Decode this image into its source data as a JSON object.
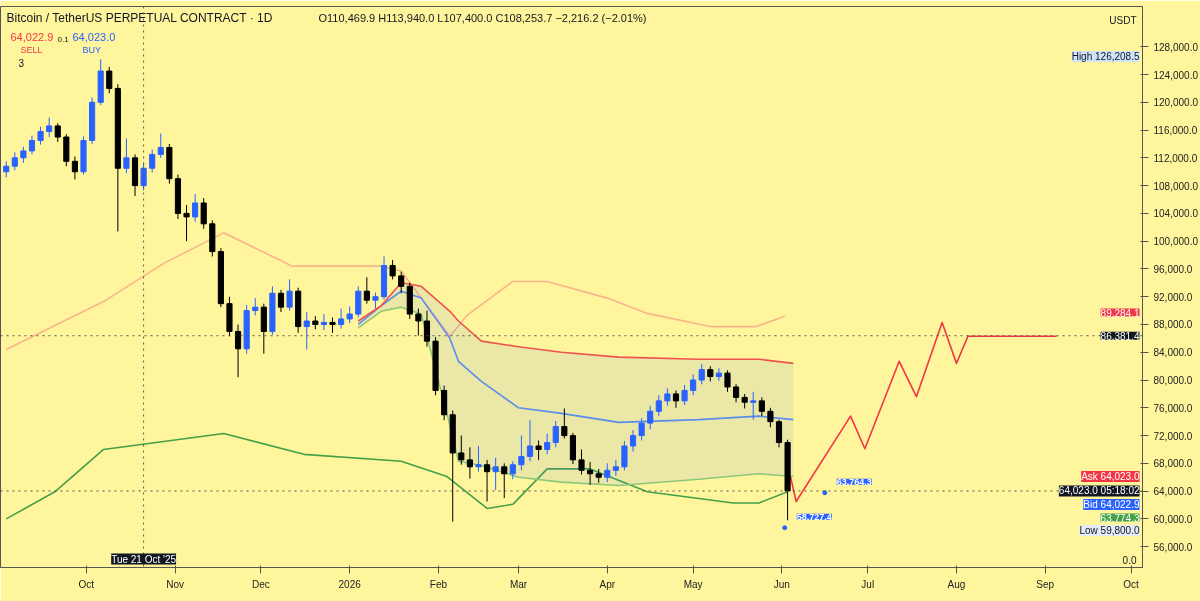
{
  "chart_data": {
    "type": "candlestick",
    "title": "Bitcoin / TetherUS PERPETUAL CONTRACT · 1D",
    "subtitle": "O110,469.9 H113,940.0 L107,400.0 C108,253.7 −2,216.2 (−2.01%)",
    "x": [
      "2025-09-03",
      "2025-09-06",
      "2025-09-09",
      "2025-09-12",
      "2025-09-15",
      "2025-09-18",
      "2025-09-21",
      "2025-09-24",
      "2025-09-27",
      "2025-09-30",
      "2025-10-03",
      "2025-10-06",
      "2025-10-09",
      "2025-10-12",
      "2025-10-15",
      "2025-10-18",
      "2025-10-21",
      "2025-10-24",
      "2025-10-27",
      "2025-10-30",
      "2025-11-02",
      "2025-11-05",
      "2025-11-08",
      "2025-11-11",
      "2025-11-14",
      "2025-11-17",
      "2025-11-20",
      "2025-11-23",
      "2025-11-26",
      "2025-11-29",
      "2025-12-02",
      "2025-12-05",
      "2025-12-08",
      "2025-12-11",
      "2025-12-14",
      "2025-12-17",
      "2025-12-20",
      "2025-12-23",
      "2025-12-26",
      "2025-12-29",
      "2026-01-01",
      "2026-01-04",
      "2026-01-07",
      "2026-01-10",
      "2026-01-13",
      "2026-01-16",
      "2026-01-19",
      "2026-01-22",
      "2026-01-25",
      "2026-01-28",
      "2026-01-31",
      "2026-02-03",
      "2026-02-06",
      "2026-02-09",
      "2026-02-12",
      "2026-02-15",
      "2026-02-18",
      "2026-02-21",
      "2026-02-24",
      "2026-02-27",
      "2026-03-02",
      "2026-03-05",
      "2026-03-08",
      "2026-03-11",
      "2026-03-14",
      "2026-03-17",
      "2026-03-20",
      "2026-03-23",
      "2026-03-26",
      "2026-03-29",
      "2026-04-01",
      "2026-04-04",
      "2026-04-07",
      "2026-04-10",
      "2026-04-13",
      "2026-04-16",
      "2026-04-19",
      "2026-04-22",
      "2026-04-25",
      "2026-04-28",
      "2026-05-01",
      "2026-05-04",
      "2026-05-07",
      "2026-05-10",
      "2026-05-13",
      "2026-05-16",
      "2026-05-19",
      "2026-05-22",
      "2026-05-25",
      "2026-05-28",
      "2026-05-31",
      "2026-06-03"
    ],
    "ohlc": [
      [
        110000,
        111500,
        109200,
        110800
      ],
      [
        110800,
        112800,
        110200,
        112000
      ],
      [
        112000,
        113600,
        111300,
        113000
      ],
      [
        113000,
        115200,
        112500,
        114500
      ],
      [
        114500,
        116500,
        113900,
        115800
      ],
      [
        115800,
        117800,
        115000,
        116600
      ],
      [
        116600,
        117000,
        114300,
        115000
      ],
      [
        115000,
        115400,
        110800,
        111500
      ],
      [
        111500,
        112200,
        108900,
        110000
      ],
      [
        110000,
        115100,
        109600,
        114500
      ],
      [
        114500,
        120700,
        114000,
        120000
      ],
      [
        120000,
        126208.5,
        119600,
        124500
      ],
      [
        124500,
        125100,
        121300,
        122000
      ],
      [
        122000,
        122600,
        101400,
        110500
      ],
      [
        110500,
        114800,
        109800,
        112000
      ],
      [
        112000,
        112500,
        106500,
        108000
      ],
      [
        108000,
        111300,
        107300,
        110500
      ],
      [
        110500,
        113200,
        109900,
        112500
      ],
      [
        112500,
        115500,
        112000,
        113500
      ],
      [
        113500,
        114000,
        108300,
        109000
      ],
      [
        109000,
        109600,
        103200,
        104000
      ],
      [
        104000,
        105200,
        100000,
        103500
      ],
      [
        103500,
        106800,
        102800,
        105500
      ],
      [
        105500,
        106200,
        101800,
        102500
      ],
      [
        102500,
        103000,
        97800,
        98500
      ],
      [
        98500,
        99000,
        90500,
        91000
      ],
      [
        91000,
        92000,
        86300,
        87000
      ],
      [
        87000,
        88000,
        80400,
        84500
      ],
      [
        84500,
        90800,
        83800,
        90000
      ],
      [
        90000,
        91800,
        89300,
        90500
      ],
      [
        90500,
        91000,
        83800,
        87000
      ],
      [
        87000,
        93500,
        86500,
        92500
      ],
      [
        92500,
        93000,
        89800,
        90500
      ],
      [
        90500,
        94500,
        90000,
        92800
      ],
      [
        92800,
        93300,
        86800,
        87700
      ],
      [
        87700,
        89800,
        84400,
        88500
      ],
      [
        88500,
        89200,
        87300,
        88000
      ],
      [
        88000,
        89500,
        87200,
        88300
      ],
      [
        88300,
        89000,
        86800,
        88000
      ],
      [
        88000,
        90300,
        87400,
        88800
      ],
      [
        88800,
        90600,
        88200,
        89500
      ],
      [
        89500,
        93500,
        89000,
        92800
      ],
      [
        92800,
        94800,
        91000,
        91500
      ],
      [
        91500,
        92600,
        90300,
        92000
      ],
      [
        92000,
        97800,
        91600,
        96500
      ],
      [
        96500,
        97300,
        94500,
        95000
      ],
      [
        95000,
        95600,
        92500,
        93500
      ],
      [
        93500,
        94000,
        88800,
        89500
      ],
      [
        89500,
        90300,
        86400,
        88500
      ],
      [
        88500,
        90000,
        84800,
        85600
      ],
      [
        85600,
        86200,
        77800,
        78500
      ],
      [
        78500,
        79200,
        74200,
        75000
      ],
      [
        75000,
        75600,
        59600,
        69500
      ],
      [
        69500,
        72000,
        67800,
        68500
      ],
      [
        68500,
        70300,
        65800,
        67500
      ],
      [
        67500,
        70500,
        66800,
        67800
      ],
      [
        67800,
        68500,
        62500,
        66800
      ],
      [
        66800,
        68800,
        64200,
        67500
      ],
      [
        67500,
        68000,
        63000,
        66500
      ],
      [
        66500,
        68300,
        65700,
        67800
      ],
      [
        67800,
        72000,
        67000,
        69000
      ],
      [
        69000,
        74200,
        68300,
        70500
      ],
      [
        70500,
        71300,
        68500,
        70000
      ],
      [
        70000,
        72300,
        69300,
        71000
      ],
      [
        71000,
        74100,
        70300,
        73300
      ],
      [
        73300,
        75900,
        71600,
        72000
      ],
      [
        72000,
        72400,
        67900,
        68500
      ],
      [
        68500,
        70000,
        66400,
        67000
      ],
      [
        67000,
        68200,
        64900,
        66500
      ],
      [
        66500,
        67200,
        65200,
        66000
      ],
      [
        66000,
        68000,
        65300,
        67000
      ],
      [
        67000,
        68500,
        66200,
        67500
      ],
      [
        67500,
        71200,
        67000,
        70500
      ],
      [
        70500,
        72800,
        69700,
        72000
      ],
      [
        72000,
        74500,
        71300,
        73800
      ],
      [
        73800,
        76300,
        72900,
        75500
      ],
      [
        75500,
        77800,
        74800,
        77000
      ],
      [
        77000,
        78800,
        76300,
        78000
      ],
      [
        78000,
        78500,
        76000,
        77000
      ],
      [
        77000,
        79300,
        76400,
        78500
      ],
      [
        78500,
        80800,
        77800,
        80000
      ],
      [
        80000,
        82300,
        79400,
        81500
      ],
      [
        81500,
        82000,
        79800,
        80500
      ],
      [
        80500,
        81700,
        79900,
        81000
      ],
      [
        81000,
        81400,
        78300,
        79000
      ],
      [
        79000,
        79400,
        76800,
        77500
      ],
      [
        77500,
        78000,
        75900,
        76800
      ],
      [
        76800,
        78300,
        74300,
        77000
      ],
      [
        77000,
        77500,
        74800,
        75500
      ],
      [
        75500,
        76000,
        73200,
        74000
      ],
      [
        74000,
        74300,
        70300,
        71000
      ],
      [
        71000,
        71400,
        59800,
        64023
      ]
    ],
    "series": [
      {
        "type": "line",
        "color": "#f9b58a",
        "x": [
          "2025-09-03",
          "2025-10-07",
          "2025-10-28",
          "2025-11-18",
          "2025-12-12",
          "2026-01-12",
          "2026-01-19",
          "2026-02-05",
          "2026-02-11",
          "2026-02-27",
          "2026-03-11",
          "2026-04-01",
          "2026-04-15",
          "2026-05-07",
          "2026-05-23",
          "2026-06-02"
        ],
        "values": [
          84400,
          91300,
          96800,
          101200,
          96400,
          96400,
          95700,
          86300,
          89300,
          94200,
          94200,
          91800,
          89600,
          87700,
          87700,
          89200
        ]
      },
      {
        "type": "line",
        "color": "#43a047",
        "x": [
          "2025-09-03",
          "2025-09-20",
          "2025-10-07",
          "2025-11-18",
          "2025-12-16",
          "2026-01-19",
          "2026-02-04",
          "2026-02-18",
          "2026-02-27",
          "2026-03-11",
          "2026-03-26",
          "2026-04-15",
          "2026-05-15",
          "2026-05-24",
          "2026-06-03"
        ],
        "values": [
          60000,
          63900,
          70000,
          72300,
          69300,
          68300,
          66100,
          61500,
          62100,
          67200,
          67200,
          63900,
          62300,
          62300,
          63900
        ]
      },
      {
        "type": "line",
        "color": "#5b8def",
        "x": [
          "2026-01-04",
          "2026-01-12",
          "2026-01-19",
          "2026-01-26",
          "2026-02-05",
          "2026-02-08",
          "2026-02-16",
          "2026-03-01",
          "2026-03-16",
          "2026-04-05",
          "2026-05-03",
          "2026-05-24",
          "2026-06-05"
        ],
        "values": [
          88000,
          90700,
          92800,
          91800,
          86000,
          82700,
          79800,
          76000,
          75200,
          73900,
          74300,
          74800,
          74300
        ],
        "lower": [
          87500,
          89900,
          90500,
          89500,
          73500,
          68300,
          67700,
          66000,
          65300,
          64800,
          65700,
          66500,
          66100
        ],
        "upper": [
          88500,
          90700,
          94000,
          93500,
          89900,
          88500,
          85600,
          84800,
          84000,
          83300,
          83000,
          83000,
          82400
        ]
      },
      {
        "type": "line",
        "color": "#ef5350",
        "x": [
          "2026-01-04",
          "2026-01-12",
          "2026-01-19",
          "2026-01-26",
          "2026-02-05",
          "2026-02-08",
          "2026-02-16",
          "2026-03-01",
          "2026-03-16",
          "2026-04-05",
          "2026-05-03",
          "2026-05-24",
          "2026-06-05"
        ],
        "values": [
          88500,
          90700,
          94000,
          93500,
          89900,
          88500,
          85600,
          84800,
          84000,
          83300,
          83000,
          83000,
          82400
        ]
      },
      {
        "type": "line",
        "color": "#8bc97a",
        "x": [
          "2026-01-04",
          "2026-01-12",
          "2026-01-19",
          "2026-01-26",
          "2026-02-05",
          "2026-02-08",
          "2026-02-16",
          "2026-03-01",
          "2026-03-16",
          "2026-04-05",
          "2026-05-03",
          "2026-05-24",
          "2026-06-05"
        ],
        "values": [
          87500,
          89900,
          90500,
          89500,
          73500,
          68300,
          67700,
          66000,
          65300,
          64800,
          65700,
          66500,
          66100
        ]
      },
      {
        "type": "line",
        "color": "#f23645",
        "x": [
          "2026-06-04",
          "2026-06-06",
          "2026-06-25",
          "2026-06-30",
          "2026-07-12",
          "2026-07-18",
          "2026-07-27",
          "2026-08-01",
          "2026-08-05",
          "2026-09-05"
        ],
        "values": [
          66100,
          62500,
          74800,
          70100,
          82700,
          77600,
          88300,
          82400,
          86300,
          86300
        ]
      }
    ],
    "xlim": [
      "2025-09-01",
      "2026-10-05"
    ],
    "xticks": [
      {
        "value": "2025-10-01",
        "label": "Oct"
      },
      {
        "value": "2025-11-01",
        "label": "Nov"
      },
      {
        "value": "2025-12-01",
        "label": "Dec"
      },
      {
        "value": "2026-01-01",
        "label": "2026"
      },
      {
        "value": "2026-02-01",
        "label": "Feb"
      },
      {
        "value": "2026-03-01",
        "label": "Mar"
      },
      {
        "value": "2026-04-01",
        "label": "Apr"
      },
      {
        "value": "2026-05-01",
        "label": "May"
      },
      {
        "value": "2026-06-01",
        "label": "Jun"
      },
      {
        "value": "2026-07-01",
        "label": "Jul"
      },
      {
        "value": "2026-08-01",
        "label": "Aug"
      },
      {
        "value": "2026-09-01",
        "label": "Sep"
      },
      {
        "value": "2026-10-01",
        "label": "Oct"
      }
    ],
    "ylim": [
      53000,
      133800
    ],
    "yticks": [
      {
        "value": 56000,
        "label": "56,000.0"
      },
      {
        "value": 60000,
        "label": "60,000.0"
      },
      {
        "value": 64000,
        "label": "64,000.0"
      },
      {
        "value": 68000,
        "label": "68,000.0"
      },
      {
        "value": 72000,
        "label": "72,000.0"
      },
      {
        "value": 76000,
        "label": "76,000.0"
      },
      {
        "value": 80000,
        "label": "80,000.0"
      },
      {
        "value": 84000,
        "label": "84,000.0"
      },
      {
        "value": 88000,
        "label": "88,000.0"
      },
      {
        "value": 92000,
        "label": "92,000.0"
      },
      {
        "value": 96000,
        "label": "96,000.0"
      },
      {
        "value": 100000,
        "label": "100,000.0"
      },
      {
        "value": 104000,
        "label": "104,000.0"
      },
      {
        "value": 108000,
        "label": "108,000.0"
      },
      {
        "value": 112000,
        "label": "112,000.0"
      },
      {
        "value": 116000,
        "label": "116,000.0"
      },
      {
        "value": 120000,
        "label": "120,000.0"
      },
      {
        "value": 124000,
        "label": "124,000.0"
      },
      {
        "value": 128000,
        "label": "128,000.0"
      }
    ],
    "ref_lines": [
      {
        "axis": "y",
        "value": 86381.4,
        "label": "86,381.4"
      },
      {
        "axis": "y",
        "value": 64023.0,
        "label": "64,023.0 05:18:02"
      },
      {
        "axis": "x",
        "value": "2025-10-21",
        "label": "Tue 21 Oct '25"
      }
    ],
    "annotations": [
      "64,022.9",
      "SELL",
      "0.1",
      "64,023.0",
      "BUY",
      "3",
      "USDT",
      "0.0",
      "High 126,208.5",
      "89,284.1",
      "Ask 64,023.0",
      "Bid 64,022.9",
      "63,774.3",
      "Low 59,800.0",
      {
        "text": "63,764.3",
        "x": "2026-06-16",
        "y": 63764.3
      },
      {
        "text": "58,727.4",
        "x": "2026-06-02",
        "y": 58727.4
      }
    ]
  }
}
